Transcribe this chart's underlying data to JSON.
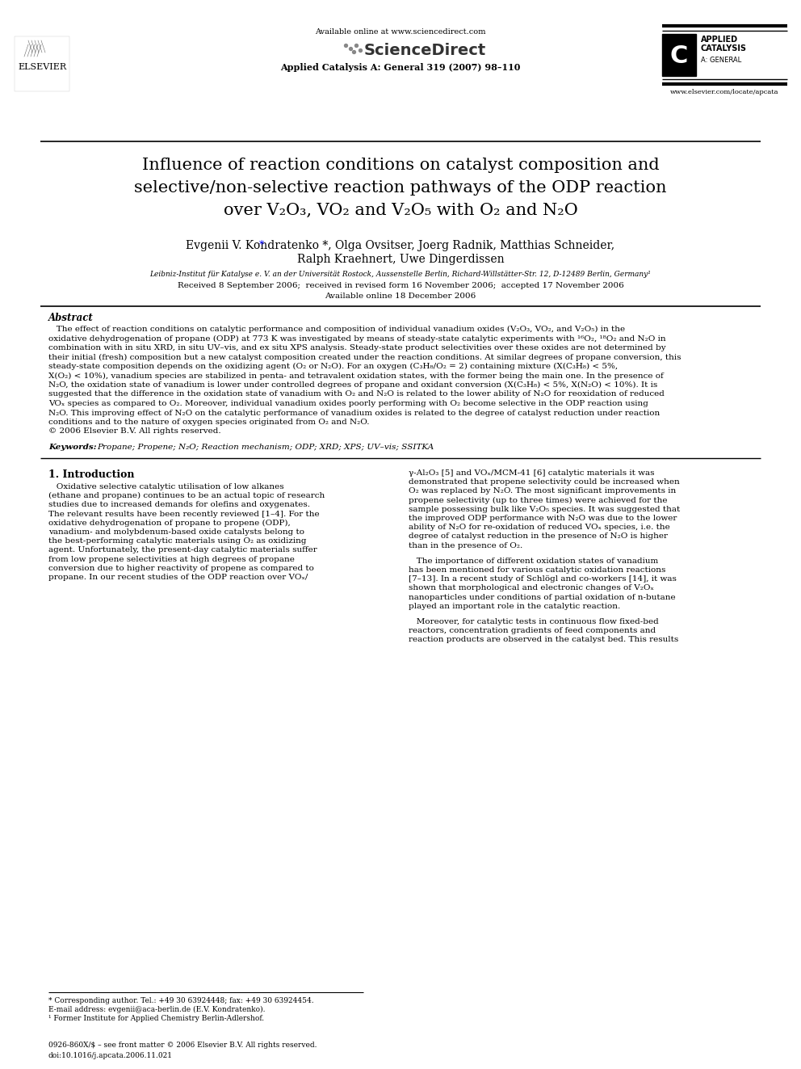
{
  "background_color": "#ffffff",
  "page_width": 9.92,
  "page_height": 13.23,
  "dpi": 100,
  "top_bar_text": "Available online at www.sciencedirect.com",
  "journal_ref": "Applied Catalysis A: General 319 (2007) 98–110",
  "title_line1": "Influence of reaction conditions on catalyst composition and",
  "title_line2": "selective/non-selective reaction pathways of the ODP reaction",
  "title_line3": "over V₂O₃, VO₂ and V₂O₅ with O₂ and N₂O",
  "authors": "Evgenii V. Kondratenko *, Olga Ovsitser, Joerg Radnik, Matthias Schneider,",
  "authors2": "Ralph Kraehnert, Uwe Dingerdissen",
  "affiliation": "Leibniz-Institut für Katalyse e. V. an der Universität Rostock, Aussenstelle Berlin, Richard-Willstätter-Str. 12, D-12489 Berlin, Germany¹",
  "received": "Received 8 September 2006;  received in revised form 16 November 2006;  accepted 17 November 2006",
  "available": "Available online 18 December 2006",
  "abstract_title": "Abstract",
  "keywords_label": "Keywords:",
  "keywords_text": "Propane; Propene; N₂O; Reaction mechanism; ODP; XRD; XPS; UV–vis; SSITKA",
  "section1_title": "1. Introduction",
  "footnote1": "* Corresponding author. Tel.: +49 30 63924448; fax: +49 30 63924454.",
  "footnote2": "E-mail address: evgenii@aca-berlin.de (E.V. Kondratenko).",
  "footnote3": "¹ Former Institute for Applied Chemistry Berlin-Adlershof.",
  "issn_text": "0926-860X/$ – see front matter © 2006 Elsevier B.V. All rights reserved.",
  "doi_text": "doi:10.1016/j.apcata.2006.11.021",
  "elsevier_text": "ELSEVIER",
  "sciencedirect_text": "ScienceDirect",
  "website": "www.elsevier.com/locate/apcata",
  "abstract_lines": [
    "   The effect of reaction conditions on catalytic performance and composition of individual vanadium oxides (V₂O₃, VO₂, and V₂O₅) in the",
    "oxidative dehydrogenation of propane (ODP) at 773 K was investigated by means of steady-state catalytic experiments with ¹⁶O₂, ¹⁸O₂ and N₂O in",
    "combination with in situ XRD, in situ UV–vis, and ex situ XPS analysis. Steady-state product selectivities over these oxides are not determined by",
    "their initial (fresh) composition but a new catalyst composition created under the reaction conditions. At similar degrees of propane conversion, this",
    "steady-state composition depends on the oxidizing agent (O₂ or N₂O). For an oxygen (C₃H₈/O₂ = 2) containing mixture (X(C₃H₈) < 5%,",
    "X(O₂) < 10%), vanadium species are stabilized in penta- and tetravalent oxidation states, with the former being the main one. In the presence of",
    "N₂O, the oxidation state of vanadium is lower under controlled degrees of propane and oxidant conversion (X(C₃H₈) < 5%, X(N₂O) < 10%). It is",
    "suggested that the difference in the oxidation state of vanadium with O₂ and N₂O is related to the lower ability of N₂O for reoxidation of reduced",
    "VOₓ species as compared to O₂. Moreover, individual vanadium oxides poorly performing with O₂ become selective in the ODP reaction using",
    "N₂O. This improving effect of N₂O on the catalytic performance of vanadium oxides is related to the degree of catalyst reduction under reaction",
    "conditions and to the nature of oxygen species originated from O₂ and N₂O.",
    "© 2006 Elsevier B.V. All rights reserved."
  ],
  "intro_col1_lines": [
    "   Oxidative selective catalytic utilisation of low alkanes",
    "(ethane and propane) continues to be an actual topic of research",
    "studies due to increased demands for olefins and oxygenates.",
    "The relevant results have been recently reviewed [1–4]. For the",
    "oxidative dehydrogenation of propane to propene (ODP),",
    "vanadium- and molybdenum-based oxide catalysts belong to",
    "the best-performing catalytic materials using O₂ as oxidizing",
    "agent. Unfortunately, the present-day catalytic materials suffer",
    "from low propene selectivities at high degrees of propane",
    "conversion due to higher reactivity of propene as compared to",
    "propane. In our recent studies of the ODP reaction over VOₓ/"
  ],
  "intro_col2_lines_a": [
    "γ-Al₂O₃ [5] and VOₓ/MCM-41 [6] catalytic materials it was",
    "demonstrated that propene selectivity could be increased when",
    "O₂ was replaced by N₂O. The most significant improvements in",
    "propene selectivity (up to three times) were achieved for the",
    "sample possessing bulk like V₂O₅ species. It was suggested that",
    "the improved ODP performance with N₂O was due to the lower",
    "ability of N₂O for re-oxidation of reduced VOₓ species, i.e. the",
    "degree of catalyst reduction in the presence of N₂O is higher",
    "than in the presence of O₂."
  ],
  "intro_col2_lines_b": [
    "   The importance of different oxidation states of vanadium",
    "has been mentioned for various catalytic oxidation reactions",
    "[7–13]. In a recent study of Schlögl and co-workers [14], it was",
    "shown that morphological and electronic changes of V₂Oₓ",
    "nanoparticles under conditions of partial oxidation of n-butane",
    "played an important role in the catalytic reaction."
  ],
  "intro_col2_lines_c": [
    "   Moreover, for catalytic tests in continuous flow fixed-bed",
    "reactors, concentration gradients of feed components and",
    "reaction products are observed in the catalyst bed. This results"
  ]
}
